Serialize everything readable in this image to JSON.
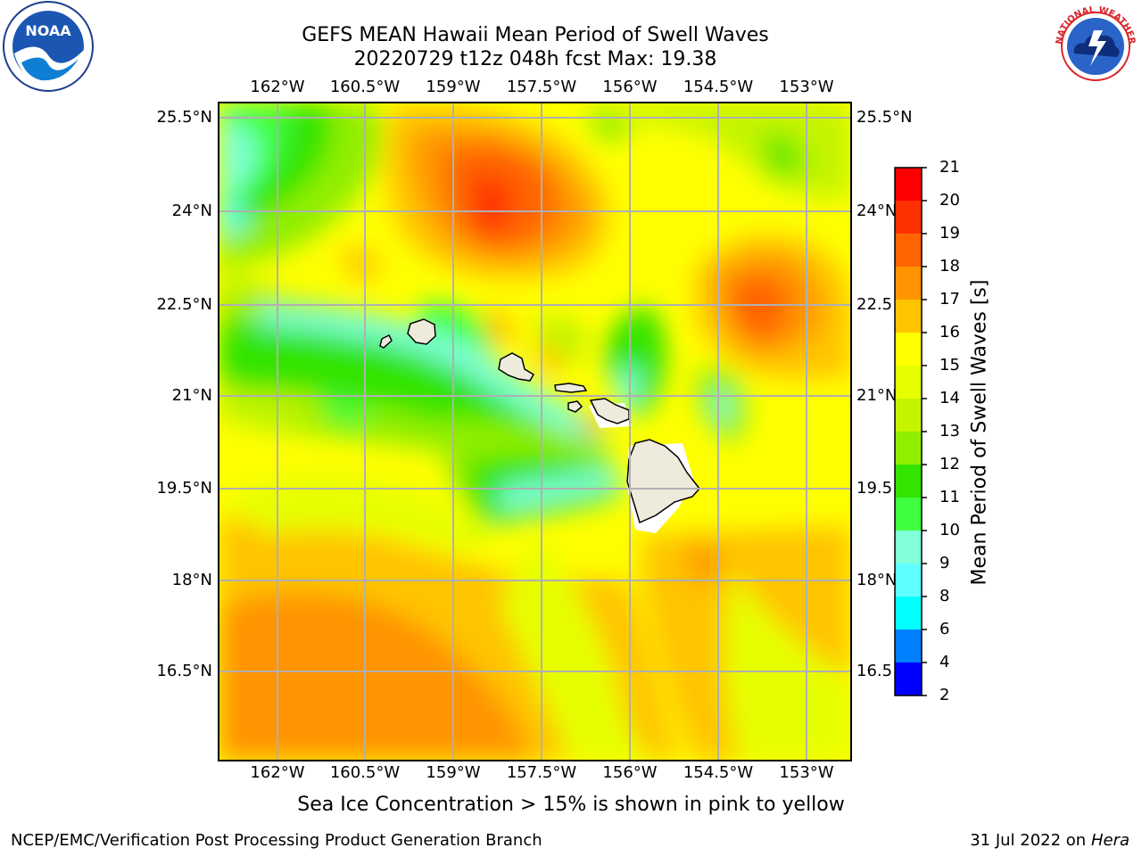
{
  "header": {
    "title_line1": "GEFS MEAN Hawaii Mean Period of Swell Waves",
    "title_line2": "20220729 t12z 048h fcst   Max: 19.38"
  },
  "logos": {
    "left": "noaa-logo",
    "left_text": "NOAA",
    "right": "national-weather-service-logo",
    "right_text": "NATIONAL WEATHER SERVICE"
  },
  "map": {
    "lon_labels": [
      "162°W",
      "160.5°W",
      "159°W",
      "157.5°W",
      "156°W",
      "154.5°W",
      "153°W"
    ],
    "lat_labels_left": [
      "25.5°N",
      "24°N",
      "22.5°N",
      "21°N",
      "19.5°N",
      "18°N",
      "16.5°N"
    ],
    "lat_labels_right": [
      "25.5°N",
      "24°N",
      "22.5",
      "21°N",
      "19.5",
      "18°N",
      "16.5"
    ],
    "extent": {
      "lon": [
        -163,
        -152.6
      ],
      "lat": [
        15.0,
        25.8
      ]
    },
    "gridlines": true,
    "islands": [
      "Niihau",
      "Kauai",
      "Oahu",
      "Molokai",
      "Lanai",
      "Kahoolawe",
      "Maui",
      "Hawaii"
    ],
    "land_color": "#eeebdc"
  },
  "colorbar": {
    "title": "Mean Period of Swell Waves [s]",
    "ticks": [
      "21",
      "20",
      "19",
      "18",
      "17",
      "16",
      "15",
      "14",
      "13",
      "12",
      "11",
      "10",
      "9",
      "8",
      "6",
      "4",
      "2"
    ],
    "colors": [
      "#ff0000",
      "#ff3000",
      "#ff6400",
      "#ff9400",
      "#ffc400",
      "#ffff00",
      "#e6ff00",
      "#c4f400",
      "#92ee00",
      "#32e400",
      "#40ff40",
      "#80ffd8",
      "#60ffff",
      "#00ffff",
      "#0080ff",
      "#0000ff"
    ]
  },
  "footer": {
    "note": "Sea Ice Concentration > 15% is shown in pink to yellow",
    "credit_left": "NCEP/EMC/Verification Post Processing Product Generation Branch",
    "credit_date": "31 Jul 2022 on ",
    "credit_host": "Hera"
  }
}
